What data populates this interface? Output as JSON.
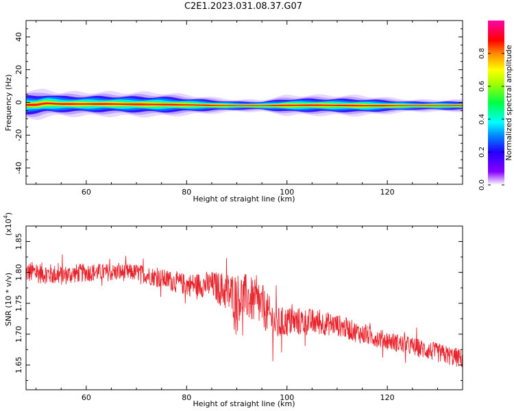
{
  "figure": {
    "title": "C2E1.2023.031.08.37.G07"
  },
  "chart_data": [
    {
      "type": "heatmap",
      "xlabel": "Height of straight line (km)",
      "ylabel": "Frequency (Hz)",
      "xlim": [
        48,
        135
      ],
      "ylim": [
        -50,
        50
      ],
      "x_ticks": [
        60,
        80,
        100,
        120
      ],
      "y_ticks": [
        -40,
        -20,
        0,
        20,
        40
      ],
      "ridge": {
        "x": [
          48,
          50,
          52,
          55,
          60,
          65,
          70,
          75,
          80,
          85,
          90,
          95,
          100,
          105,
          110,
          115,
          120,
          125,
          130,
          135
        ],
        "center_hz": [
          -1.5,
          -1.5,
          -0.5,
          -1.0,
          -1.0,
          -1.0,
          -1.2,
          -1.3,
          -1.5,
          -1.8,
          -2.0,
          -2.0,
          -1.8,
          -1.7,
          -1.8,
          -2.0,
          -2.0,
          -2.0,
          -2.0,
          -2.0
        ],
        "halfwidth_hz": [
          3.5,
          3.5,
          3.5,
          3.0,
          3.0,
          3.0,
          3.0,
          3.0,
          2.5,
          2.0,
          1.5,
          1.5,
          2.5,
          2.5,
          2.5,
          2.5,
          2.0,
          1.5,
          1.5,
          1.5
        ]
      },
      "colorbar": {
        "label": "Normalized spectral amplitude",
        "range": [
          0,
          1
        ],
        "ticks": [
          "0.0",
          "0.2",
          "0.4",
          "0.6",
          "0.8"
        ],
        "tick_values": [
          0,
          0.2,
          0.4,
          0.6,
          0.8
        ]
      }
    },
    {
      "type": "line",
      "xlabel": "Height of straight line (km)",
      "ylabel": "SNR (10 * v/v)",
      "multiplier_label": "(x10",
      "multiplier_exp": "4",
      "xlim": [
        48,
        135
      ],
      "ylim": [
        1.61,
        1.875
      ],
      "x_ticks": [
        60,
        80,
        100,
        120
      ],
      "y_ticks": [
        "1.65",
        "1.70",
        "1.75",
        "1.80",
        "1.85"
      ],
      "y_tick_values": [
        1.65,
        1.7,
        1.75,
        1.8,
        1.85
      ],
      "series_color": "#e8232b",
      "trend": {
        "x": [
          48,
          50,
          55,
          60,
          65,
          70,
          75,
          80,
          85,
          90,
          92,
          95,
          98,
          100,
          105,
          110,
          115,
          120,
          125,
          130,
          135
        ],
        "y": [
          1.8,
          1.8,
          1.795,
          1.8,
          1.8,
          1.8,
          1.79,
          1.78,
          1.78,
          1.76,
          1.76,
          1.745,
          1.715,
          1.72,
          1.72,
          1.715,
          1.7,
          1.69,
          1.68,
          1.67,
          1.66
        ]
      },
      "noise_amplitude": [
        [
          48,
          0.018
        ],
        [
          60,
          0.015
        ],
        [
          70,
          0.014
        ],
        [
          80,
          0.018
        ],
        [
          85,
          0.022
        ],
        [
          90,
          0.04
        ],
        [
          95,
          0.035
        ],
        [
          100,
          0.025
        ],
        [
          110,
          0.018
        ],
        [
          120,
          0.015
        ],
        [
          135,
          0.016
        ]
      ]
    }
  ]
}
